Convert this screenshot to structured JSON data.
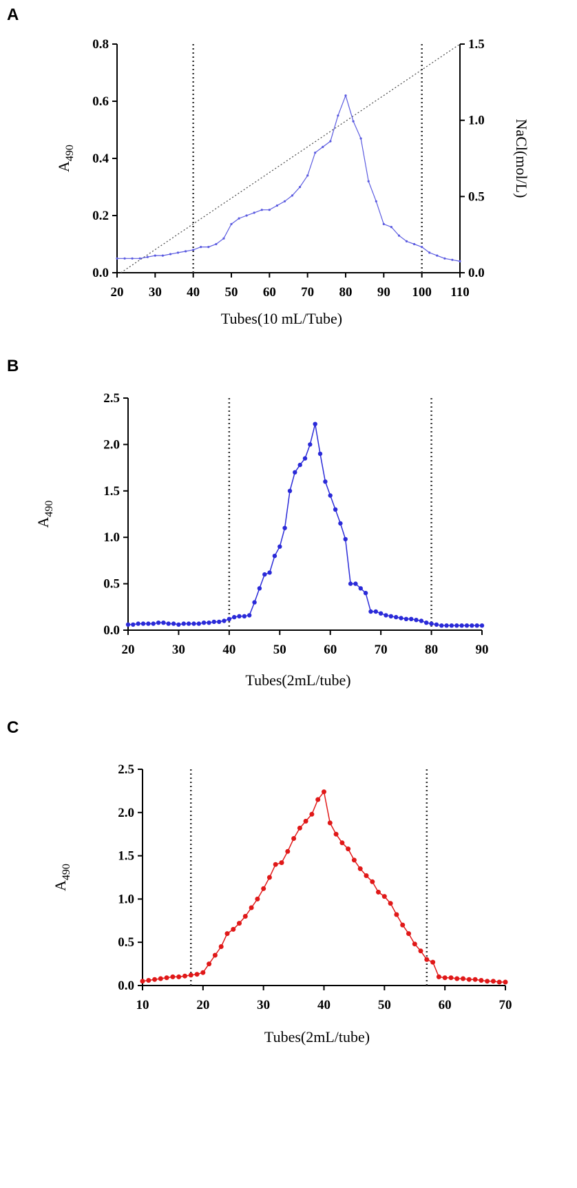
{
  "chart_data": [
    {
      "panel": "A",
      "type": "line",
      "xlabel": "Tubes(10 mL/Tube)",
      "ylabel": "A",
      "ylabel_sub": "490",
      "y2label": "NaCl(mol/L)",
      "xlim": [
        20,
        110
      ],
      "ylim": [
        0,
        0.8
      ],
      "y2lim": [
        0,
        1.5
      ],
      "xticks": [
        "20",
        "30",
        "40",
        "50",
        "60",
        "70",
        "80",
        "90",
        "100",
        "110"
      ],
      "yticks": [
        "0.0",
        "0.2",
        "0.4",
        "0.6",
        "0.8"
      ],
      "y2ticks": [
        "0.0",
        "0.5",
        "1.0",
        "1.5"
      ],
      "vlines": [
        40,
        100
      ],
      "color": "#5a5ae0",
      "markers": "small",
      "series": [
        {
          "x": [
            20,
            22,
            24,
            26,
            28,
            30,
            32,
            34,
            36,
            38,
            40,
            42,
            44,
            46,
            48,
            50,
            52,
            54,
            56,
            58,
            60,
            62,
            64,
            66,
            68,
            70,
            72,
            74,
            76,
            78,
            80,
            82,
            84,
            86,
            88,
            90,
            92,
            94,
            96,
            98,
            100,
            102,
            104,
            106,
            108,
            110
          ],
          "values": [
            0.05,
            0.05,
            0.05,
            0.05,
            0.055,
            0.06,
            0.06,
            0.065,
            0.07,
            0.075,
            0.08,
            0.09,
            0.09,
            0.1,
            0.12,
            0.17,
            0.19,
            0.2,
            0.21,
            0.22,
            0.22,
            0.235,
            0.25,
            0.27,
            0.3,
            0.34,
            0.42,
            0.44,
            0.46,
            0.55,
            0.62,
            0.53,
            0.47,
            0.32,
            0.25,
            0.17,
            0.16,
            0.13,
            0.11,
            0.1,
            0.09,
            0.07,
            0.06,
            0.05,
            0.045,
            0.04
          ]
        }
      ],
      "secondary_line": {
        "x": [
          21,
          110
        ],
        "values": [
          0.0,
          1.5
        ],
        "style": "dotted"
      }
    },
    {
      "panel": "B",
      "type": "line",
      "xlabel": "Tubes(2mL/tube)",
      "ylabel": "A",
      "ylabel_sub": "490",
      "xlim": [
        20,
        90
      ],
      "ylim": [
        0,
        2.5
      ],
      "xticks": [
        "20",
        "30",
        "40",
        "50",
        "60",
        "70",
        "80",
        "90"
      ],
      "yticks": [
        "0.0",
        "0.5",
        "1.0",
        "1.5",
        "2.0",
        "2.5"
      ],
      "vlines": [
        40,
        80
      ],
      "color": "#2a2ad8",
      "markers": "dots",
      "series": [
        {
          "x": [
            20,
            21,
            22,
            23,
            24,
            25,
            26,
            27,
            28,
            29,
            30,
            31,
            32,
            33,
            34,
            35,
            36,
            37,
            38,
            39,
            40,
            41,
            42,
            43,
            44,
            45,
            46,
            47,
            48,
            49,
            50,
            51,
            52,
            53,
            54,
            55,
            56,
            57,
            58,
            59,
            60,
            61,
            62,
            63,
            64,
            65,
            66,
            67,
            68,
            69,
            70,
            71,
            72,
            73,
            74,
            75,
            76,
            77,
            78,
            79,
            80,
            81,
            82,
            83,
            84,
            85,
            86,
            87,
            88,
            89,
            90
          ],
          "values": [
            0.06,
            0.06,
            0.07,
            0.07,
            0.07,
            0.07,
            0.08,
            0.08,
            0.07,
            0.07,
            0.06,
            0.07,
            0.07,
            0.07,
            0.07,
            0.08,
            0.08,
            0.09,
            0.09,
            0.1,
            0.12,
            0.14,
            0.15,
            0.15,
            0.16,
            0.3,
            0.45,
            0.6,
            0.62,
            0.8,
            0.9,
            1.1,
            1.5,
            1.7,
            1.78,
            1.85,
            2.0,
            2.22,
            1.9,
            1.6,
            1.45,
            1.3,
            1.15,
            0.98,
            0.5,
            0.5,
            0.45,
            0.4,
            0.2,
            0.2,
            0.18,
            0.16,
            0.15,
            0.14,
            0.13,
            0.12,
            0.12,
            0.11,
            0.1,
            0.08,
            0.07,
            0.06,
            0.05,
            0.05,
            0.05,
            0.05,
            0.05,
            0.05,
            0.05,
            0.05,
            0.05
          ]
        }
      ]
    },
    {
      "panel": "C",
      "type": "line",
      "xlabel": "Tubes(2mL/tube)",
      "ylabel": "A",
      "ylabel_sub": "490",
      "xlim": [
        10,
        70
      ],
      "ylim": [
        0,
        2.5
      ],
      "xticks": [
        "10",
        "20",
        "30",
        "40",
        "50",
        "60",
        "70"
      ],
      "yticks": [
        "0.0",
        "0.5",
        "1.0",
        "1.5",
        "2.0",
        "2.5"
      ],
      "vlines": [
        18,
        57
      ],
      "color": "#e01818",
      "markers": "dots",
      "series": [
        {
          "x": [
            10,
            11,
            12,
            13,
            14,
            15,
            16,
            17,
            18,
            19,
            20,
            21,
            22,
            23,
            24,
            25,
            26,
            27,
            28,
            29,
            30,
            31,
            32,
            33,
            34,
            35,
            36,
            37,
            38,
            39,
            40,
            41,
            42,
            43,
            44,
            45,
            46,
            47,
            48,
            49,
            50,
            51,
            52,
            53,
            54,
            55,
            56,
            57,
            58,
            59,
            60,
            61,
            62,
            63,
            64,
            65,
            66,
            67,
            68,
            69,
            70
          ],
          "values": [
            0.05,
            0.06,
            0.07,
            0.08,
            0.09,
            0.1,
            0.1,
            0.11,
            0.12,
            0.13,
            0.15,
            0.25,
            0.35,
            0.45,
            0.6,
            0.65,
            0.72,
            0.8,
            0.9,
            1.0,
            1.12,
            1.25,
            1.4,
            1.42,
            1.55,
            1.7,
            1.82,
            1.9,
            1.98,
            2.15,
            2.24,
            1.88,
            1.75,
            1.65,
            1.58,
            1.45,
            1.35,
            1.27,
            1.2,
            1.08,
            1.03,
            0.95,
            0.82,
            0.7,
            0.6,
            0.48,
            0.4,
            0.3,
            0.27,
            0.1,
            0.09,
            0.09,
            0.08,
            0.08,
            0.07,
            0.07,
            0.06,
            0.05,
            0.05,
            0.04,
            0.04
          ]
        }
      ]
    }
  ]
}
